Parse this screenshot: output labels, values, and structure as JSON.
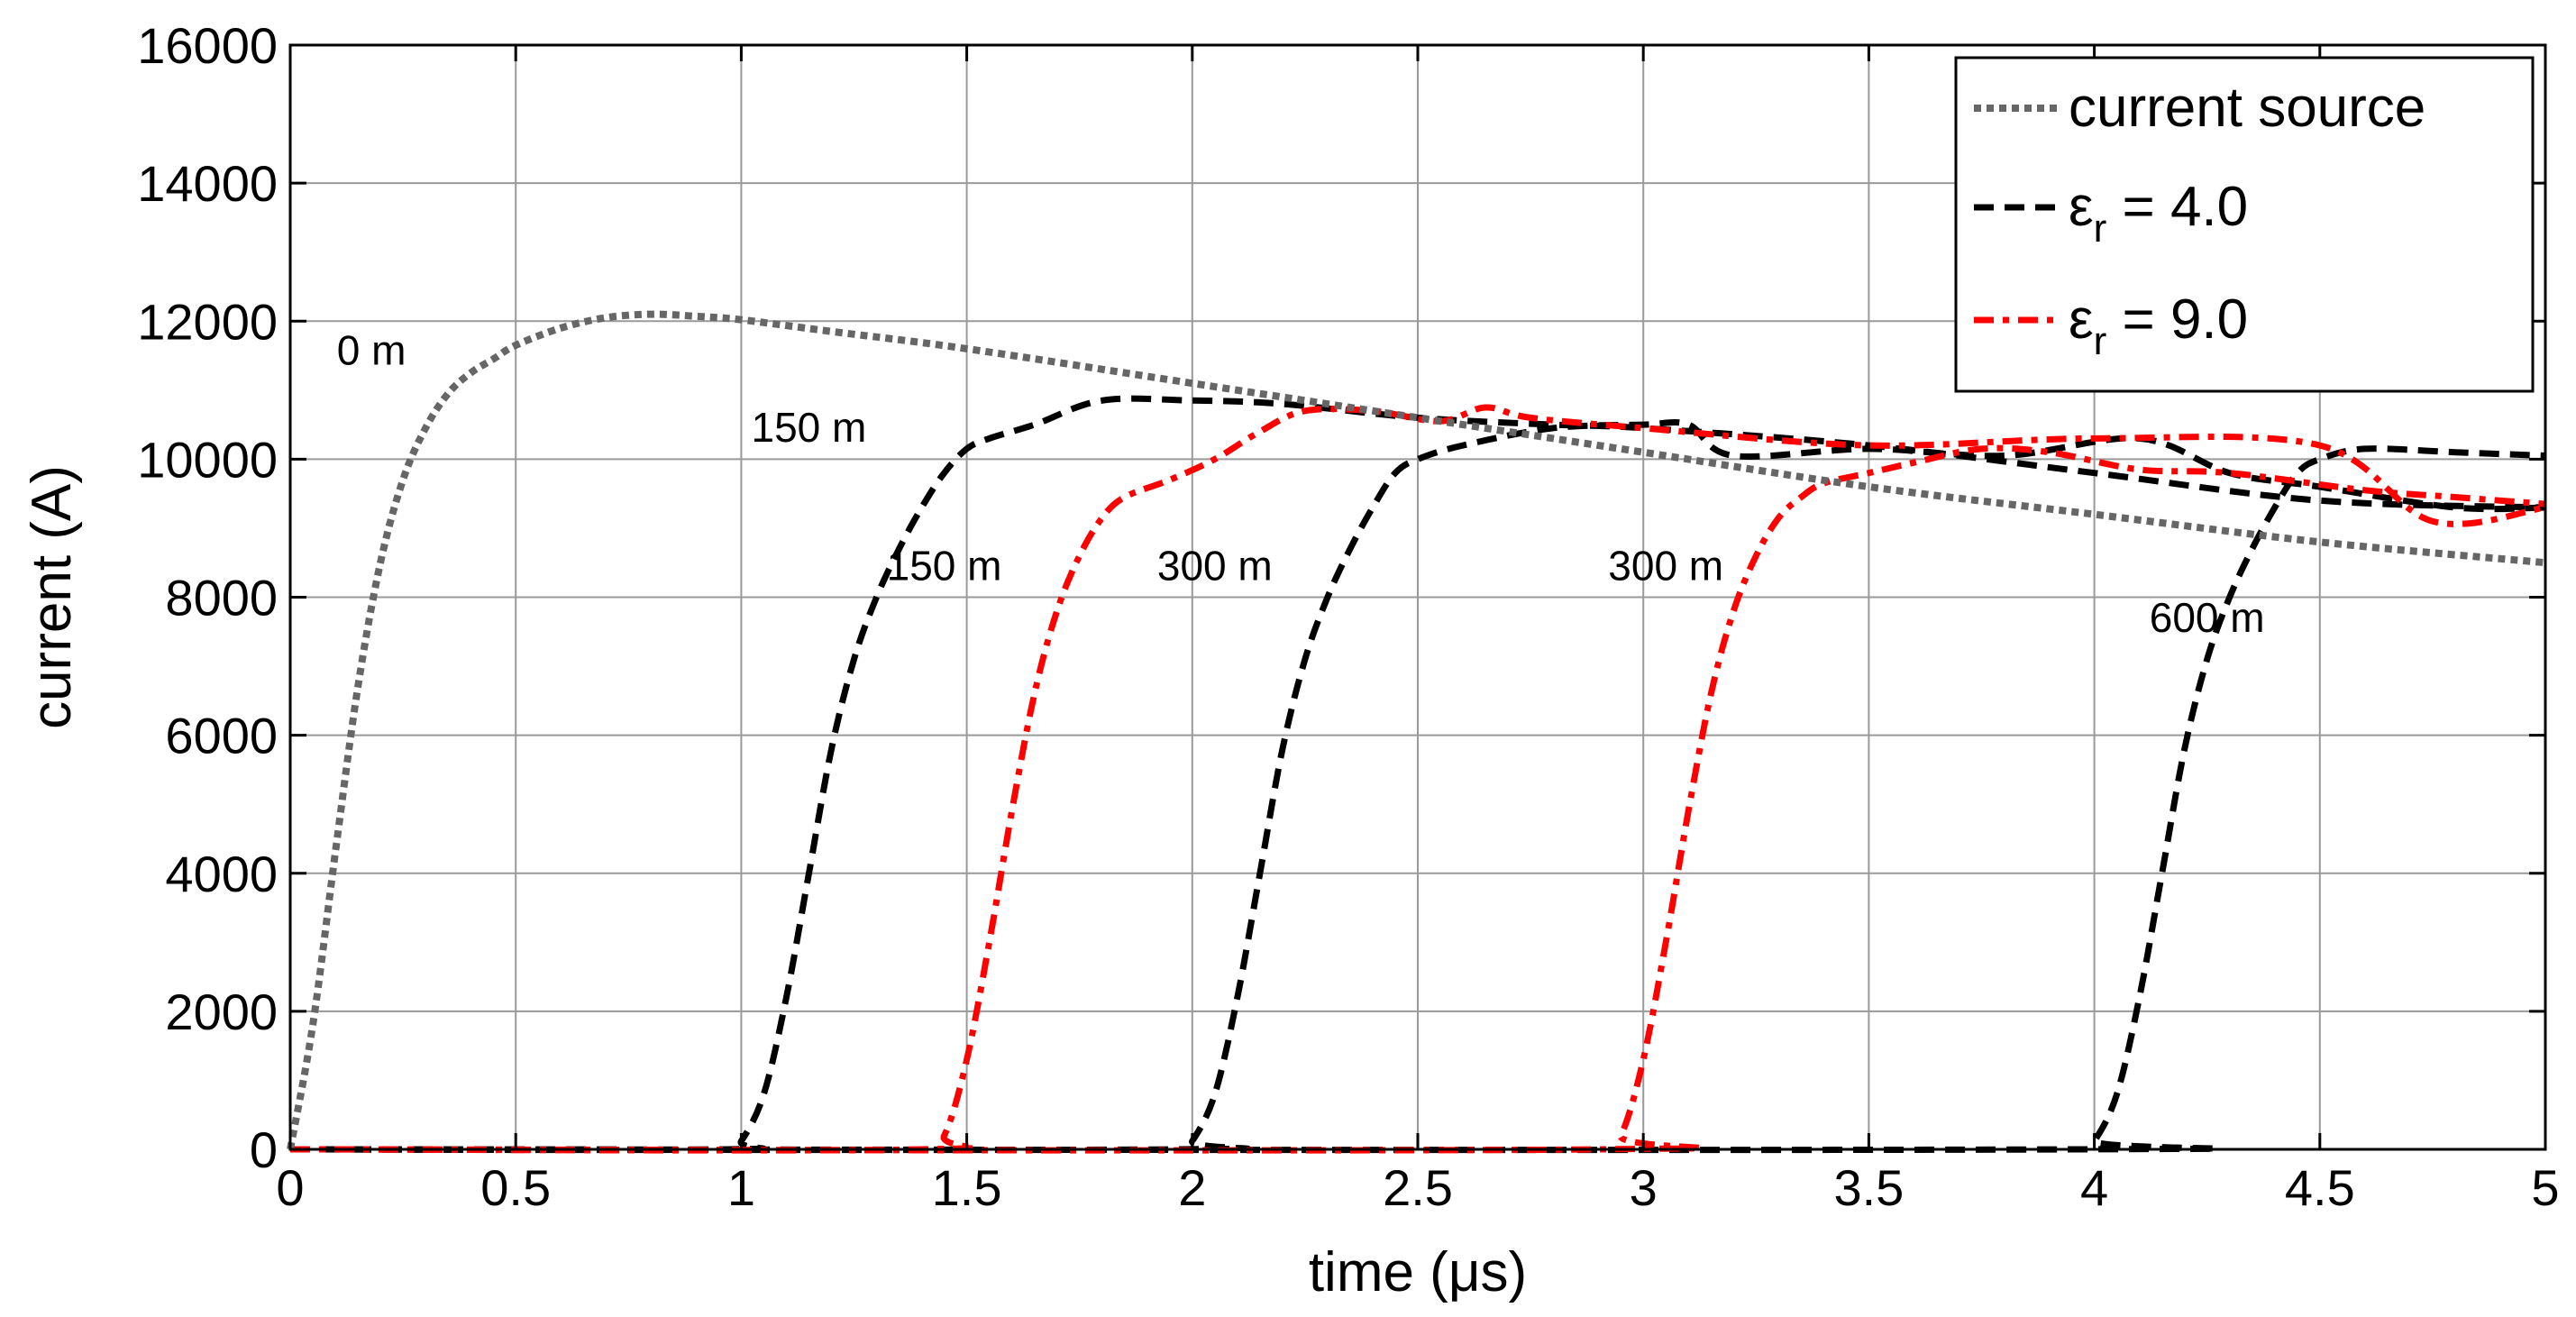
{
  "chart_data": {
    "type": "line",
    "title": "",
    "xlabel": "time (μs)",
    "ylabel": "current (A)",
    "xlim": [
      0,
      5
    ],
    "ylim": [
      0,
      16000
    ],
    "xticks": [
      0,
      0.5,
      1,
      1.5,
      2,
      2.5,
      3,
      3.5,
      4,
      4.5,
      5
    ],
    "yticks": [
      0,
      2000,
      4000,
      6000,
      8000,
      10000,
      12000,
      14000,
      16000
    ],
    "xtick_labels": [
      "0",
      "0.5",
      "1",
      "1.5",
      "2",
      "2.5",
      "3",
      "3.5",
      "4",
      "4.5",
      "5"
    ],
    "ytick_labels": [
      "0",
      "2000",
      "4000",
      "6000",
      "8000",
      "10000",
      "12000",
      "14000",
      "16000"
    ],
    "grid": true,
    "legend_position": "top-right",
    "legend": [
      {
        "label": "current source",
        "symbol": "",
        "sub": "",
        "value": "",
        "style": "dotted",
        "color": "#666666"
      },
      {
        "label": "",
        "symbol": "ε",
        "sub": "r",
        "value": " = 4.0",
        "style": "dashed",
        "color": "#000000"
      },
      {
        "label": "",
        "symbol": "ε",
        "sub": "r",
        "value": " = 9.0",
        "style": "dashdot",
        "color": "#ff0000"
      }
    ],
    "series": [
      {
        "name": "current source (0 m)",
        "group": "current source",
        "color": "#666666",
        "style": "dotted",
        "x": [
          0,
          0.05,
          0.1,
          0.15,
          0.2,
          0.25,
          0.3,
          0.35,
          0.4,
          0.45,
          0.5,
          0.6,
          0.7,
          0.8,
          0.9,
          1.0,
          1.2,
          1.5,
          2.0,
          2.5,
          3.0,
          3.5,
          4.0,
          4.5,
          5.0
        ],
        "y": [
          0,
          1800,
          4300,
          6700,
          8500,
          9700,
          10450,
          10950,
          11250,
          11450,
          11650,
          11900,
          12050,
          12100,
          12070,
          12020,
          11850,
          11600,
          11100,
          10600,
          10100,
          9600,
          9200,
          8800,
          8500
        ]
      },
      {
        "name": "εr = 4.0, 150 m",
        "group": "εr = 4.0",
        "color": "#000000",
        "style": "dashed",
        "x": [
          0,
          0.97,
          1.0,
          1.05,
          1.1,
          1.15,
          1.2,
          1.25,
          1.3,
          1.35,
          1.4,
          1.45,
          1.5,
          1.55,
          1.65,
          1.8,
          2.0,
          2.2,
          2.5,
          2.8,
          3.0,
          3.5,
          4.0,
          4.5,
          5.0
        ],
        "y": [
          0,
          0,
          120,
          800,
          2200,
          4000,
          5800,
          7100,
          8000,
          8700,
          9300,
          9800,
          10150,
          10300,
          10500,
          10850,
          10850,
          10800,
          10600,
          10500,
          10450,
          10200,
          9800,
          9400,
          9300
        ]
      },
      {
        "name": "εr = 4.0, 300 m",
        "group": "εr = 4.0",
        "color": "#000000",
        "style": "dashed",
        "x": [
          0,
          1.97,
          2.0,
          2.05,
          2.1,
          2.15,
          2.2,
          2.25,
          2.3,
          2.35,
          2.4,
          2.45,
          2.5,
          2.6,
          2.8,
          3.0,
          3.1,
          3.2,
          3.5,
          3.8,
          4.1,
          4.3,
          4.5,
          4.8,
          5.0
        ],
        "y": [
          0,
          0,
          120,
          800,
          2200,
          4000,
          5800,
          7100,
          8000,
          8700,
          9300,
          9800,
          10000,
          10200,
          10450,
          10500,
          10500,
          10050,
          10150,
          10050,
          10300,
          9800,
          9600,
          9300,
          9300
        ]
      },
      {
        "name": "εr = 4.0, 600 m",
        "group": "εr = 4.0",
        "color": "#000000",
        "style": "dashed",
        "x": [
          0,
          3.97,
          4.0,
          4.05,
          4.1,
          4.15,
          4.2,
          4.25,
          4.3,
          4.35,
          4.4,
          4.45,
          4.5,
          4.6,
          4.8,
          5.0
        ],
        "y": [
          0,
          0,
          120,
          800,
          2200,
          4000,
          5800,
          7100,
          8000,
          8700,
          9300,
          9800,
          10000,
          10150,
          10100,
          10050
        ]
      },
      {
        "name": "εr = 9.0, 150 m",
        "group": "εr = 9.0",
        "color": "#ff0000",
        "style": "dashdot",
        "x": [
          0,
          1.4,
          1.45,
          1.5,
          1.55,
          1.6,
          1.65,
          1.7,
          1.75,
          1.8,
          1.85,
          1.95,
          2.05,
          2.15,
          2.25,
          2.4,
          2.55,
          2.65,
          2.75,
          3.0,
          3.5,
          4.0,
          4.5,
          4.75,
          5.0
        ],
        "y": [
          0,
          0,
          200,
          1300,
          3000,
          4900,
          6600,
          7800,
          8600,
          9150,
          9450,
          9700,
          10000,
          10400,
          10700,
          10700,
          10550,
          10750,
          10600,
          10450,
          10200,
          10300,
          10200,
          9100,
          9300
        ]
      },
      {
        "name": "εr = 9.0, 300 m",
        "group": "εr = 9.0",
        "color": "#ff0000",
        "style": "dashdot",
        "x": [
          0,
          2.9,
          2.95,
          3.0,
          3.05,
          3.1,
          3.15,
          3.2,
          3.25,
          3.3,
          3.35,
          3.4,
          3.5,
          3.6,
          3.75,
          3.9,
          4.1,
          4.3,
          4.6,
          4.8,
          5.0
        ],
        "y": [
          0,
          0,
          200,
          1300,
          3000,
          4900,
          6600,
          7800,
          8600,
          9150,
          9450,
          9650,
          9800,
          9950,
          10150,
          10100,
          9850,
          9800,
          9550,
          9450,
          9350
        ]
      }
    ],
    "annotations": [
      {
        "text": "0 m",
        "x": 0.18,
        "y": 11370
      },
      {
        "text": "150 m",
        "x": 1.15,
        "y": 10250
      },
      {
        "text": "150 m",
        "x": 1.45,
        "y": 8250
      },
      {
        "text": "300 m",
        "x": 2.05,
        "y": 8250
      },
      {
        "text": "300 m",
        "x": 3.05,
        "y": 8250
      },
      {
        "text": "600 m",
        "x": 4.25,
        "y": 7500
      }
    ]
  }
}
